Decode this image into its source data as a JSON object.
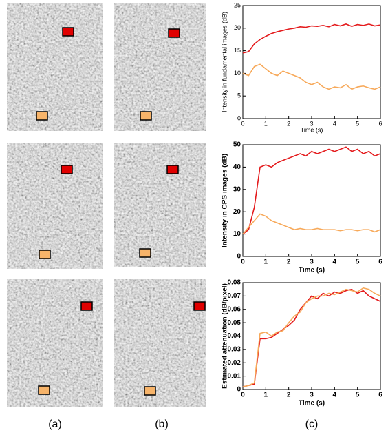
{
  "chart_data": [
    {
      "type": "line",
      "y_label": "Intensity in fundamental images (dB)",
      "x_label": "Time (s)",
      "x": [
        0,
        0.25,
        0.5,
        0.75,
        1,
        1.25,
        1.5,
        1.75,
        2,
        2.25,
        2.5,
        2.75,
        3,
        3.25,
        3.5,
        3.75,
        4,
        4.25,
        4.5,
        4.75,
        5,
        5.25,
        5.5,
        5.75,
        6
      ],
      "series": [
        {
          "color": "#e41a1c",
          "values": [
            14.5,
            14.8,
            16.5,
            17.5,
            18.2,
            18.8,
            19.2,
            19.5,
            19.8,
            20.0,
            20.3,
            20.2,
            20.5,
            20.4,
            20.6,
            20.3,
            20.8,
            20.5,
            20.9,
            20.4,
            20.8,
            20.6,
            20.9,
            20.5,
            20.7
          ]
        },
        {
          "color": "#f7a95a",
          "values": [
            10,
            9.5,
            11.5,
            12,
            11,
            10,
            9.5,
            10.5,
            10,
            9.5,
            9,
            8,
            7.5,
            8,
            7,
            6.5,
            7,
            6.8,
            7.5,
            6.5,
            7,
            7.2,
            6.8,
            6.5,
            7
          ]
        }
      ],
      "xlim": [
        0,
        6
      ],
      "xticks": [
        0,
        1,
        2,
        3,
        4,
        5,
        6
      ],
      "ylim": [
        0,
        25
      ],
      "yticks": [
        0,
        5,
        10,
        15,
        20,
        25
      ]
    },
    {
      "type": "line",
      "y_label": "Intensity in CPS images (dB)",
      "x_label": "Time (s)",
      "x": [
        0,
        0.25,
        0.5,
        0.75,
        1,
        1.25,
        1.5,
        1.75,
        2,
        2.25,
        2.5,
        2.75,
        3,
        3.25,
        3.5,
        3.75,
        4,
        4.25,
        4.5,
        4.75,
        5,
        5.25,
        5.5,
        5.75,
        6
      ],
      "series": [
        {
          "color": "#e41a1c",
          "values": [
            10,
            12,
            22,
            40,
            41,
            40,
            42,
            43,
            44,
            45,
            46,
            45,
            47,
            46,
            47,
            48,
            47,
            48,
            49,
            47,
            48,
            46,
            47,
            45,
            46
          ]
        },
        {
          "color": "#f7a95a",
          "values": [
            10,
            13,
            16,
            19,
            18,
            16,
            15,
            14,
            13,
            12,
            12.5,
            12,
            12,
            12.5,
            12,
            12,
            12,
            11.5,
            12,
            12,
            11.5,
            12,
            12,
            11,
            12
          ]
        }
      ],
      "xlim": [
        0,
        6
      ],
      "xticks": [
        0,
        1,
        2,
        3,
        4,
        5,
        6
      ],
      "ylim": [
        0,
        50
      ],
      "yticks": [
        0,
        10,
        20,
        30,
        40,
        50
      ]
    },
    {
      "type": "line",
      "y_label": "Estimated attenuation (dB/pixel)",
      "x_label": "Time (s)",
      "x": [
        0,
        0.25,
        0.5,
        0.75,
        1,
        1.25,
        1.5,
        1.75,
        2,
        2.25,
        2.5,
        2.75,
        3,
        3.25,
        3.5,
        3.75,
        4,
        4.25,
        4.5,
        4.75,
        5,
        5.25,
        5.5,
        5.75,
        6
      ],
      "series": [
        {
          "color": "#e41a1c",
          "values": [
            0.002,
            0.003,
            0.004,
            0.038,
            0.038,
            0.039,
            0.042,
            0.045,
            0.048,
            0.052,
            0.06,
            0.065,
            0.07,
            0.068,
            0.072,
            0.07,
            0.073,
            0.072,
            0.074,
            0.075,
            0.072,
            0.074,
            0.07,
            0.068,
            0.066
          ]
        },
        {
          "color": "#f7a95a",
          "values": [
            0.002,
            0.003,
            0.005,
            0.042,
            0.043,
            0.04,
            0.043,
            0.044,
            0.05,
            0.055,
            0.058,
            0.065,
            0.068,
            0.07,
            0.07,
            0.072,
            0.071,
            0.073,
            0.075,
            0.074,
            0.073,
            0.076,
            0.075,
            0.072,
            0.07
          ]
        }
      ],
      "xlim": [
        0,
        6
      ],
      "xticks": [
        0,
        1,
        2,
        3,
        4,
        5,
        6
      ],
      "ylim": [
        0,
        0.08
      ],
      "yticks": [
        0,
        0.01,
        0.02,
        0.03,
        0.04,
        0.05,
        0.06,
        0.07,
        0.08
      ]
    }
  ],
  "panel_labels": [
    "(a)",
    "(b)",
    "(c)"
  ]
}
